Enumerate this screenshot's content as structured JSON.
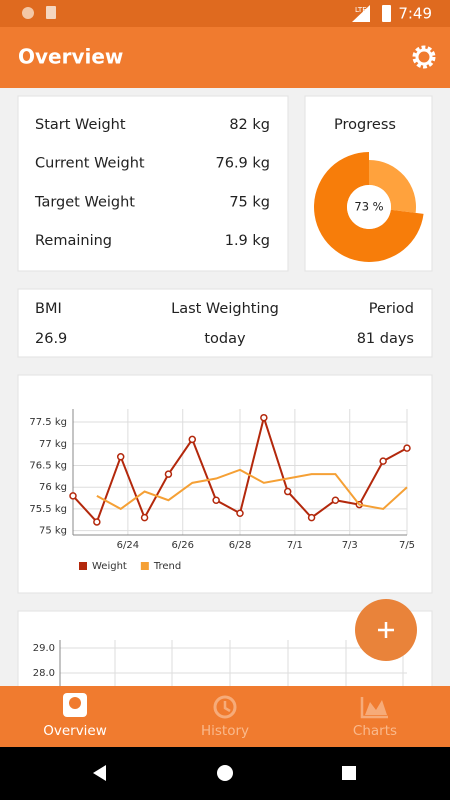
{
  "status_bar": {
    "time": "7:49",
    "network": "LTE"
  },
  "app_bar": {
    "title": "Overview"
  },
  "stats": [
    {
      "label": "Start Weight",
      "value": "82 kg"
    },
    {
      "label": "Current Weight",
      "value": "76.9 kg"
    },
    {
      "label": "Target Weight",
      "value": "75 kg"
    },
    {
      "label": "Remaining",
      "value": "1.9 kg"
    }
  ],
  "progress": {
    "title": "Progress",
    "value": 73,
    "label": "73 %"
  },
  "summary": [
    {
      "label": "BMI",
      "value": "26.9"
    },
    {
      "label": "Last Weighting",
      "value": "today"
    },
    {
      "label": "Period",
      "value": "81 days"
    }
  ],
  "chart_data": {
    "type": "line",
    "x": [
      0,
      1,
      2,
      3,
      4,
      5,
      6,
      7,
      8,
      9,
      10,
      11,
      12,
      13,
      14
    ],
    "xlim": [
      0,
      14
    ],
    "xticks": [
      {
        "value": 2.3,
        "label": "6/24"
      },
      {
        "value": 4.6,
        "label": "6/26"
      },
      {
        "value": 7,
        "label": "6/28"
      },
      {
        "value": 9.3,
        "label": "7/1"
      },
      {
        "value": 11.6,
        "label": "7/3"
      },
      {
        "value": 14,
        "label": "7/5"
      }
    ],
    "ylim": [
      74.9,
      77.8
    ],
    "yticks": [
      {
        "value": 75,
        "label": "75 kg"
      },
      {
        "value": 75.5,
        "label": "75.5 kg"
      },
      {
        "value": 76,
        "label": "76 kg"
      },
      {
        "value": 76.5,
        "label": "76.5 kg"
      },
      {
        "value": 77,
        "label": "77 kg"
      },
      {
        "value": 77.5,
        "label": "77.5 kg"
      }
    ],
    "grid": true,
    "legend": "bottom-left",
    "series": [
      {
        "name": "Weight",
        "color": "#b3280c",
        "values": [
          75.8,
          75.2,
          76.7,
          75.3,
          76.3,
          77.1,
          75.7,
          75.4,
          77.6,
          75.9,
          75.3,
          75.7,
          75.6,
          76.6,
          76.9
        ]
      },
      {
        "name": "Trend",
        "color": "#f5a035",
        "values": [
          null,
          75.8,
          75.5,
          75.9,
          75.7,
          76.1,
          76.2,
          76.4,
          76.1,
          76.2,
          76.3,
          76.3,
          75.6,
          75.5,
          76.0
        ]
      }
    ]
  },
  "chart2": {
    "yticks": [
      "29.0",
      "28.0"
    ]
  },
  "bottom_nav": [
    {
      "label": "Overview",
      "active": true
    },
    {
      "label": "History",
      "active": false
    },
    {
      "label": "Charts",
      "active": false
    }
  ]
}
